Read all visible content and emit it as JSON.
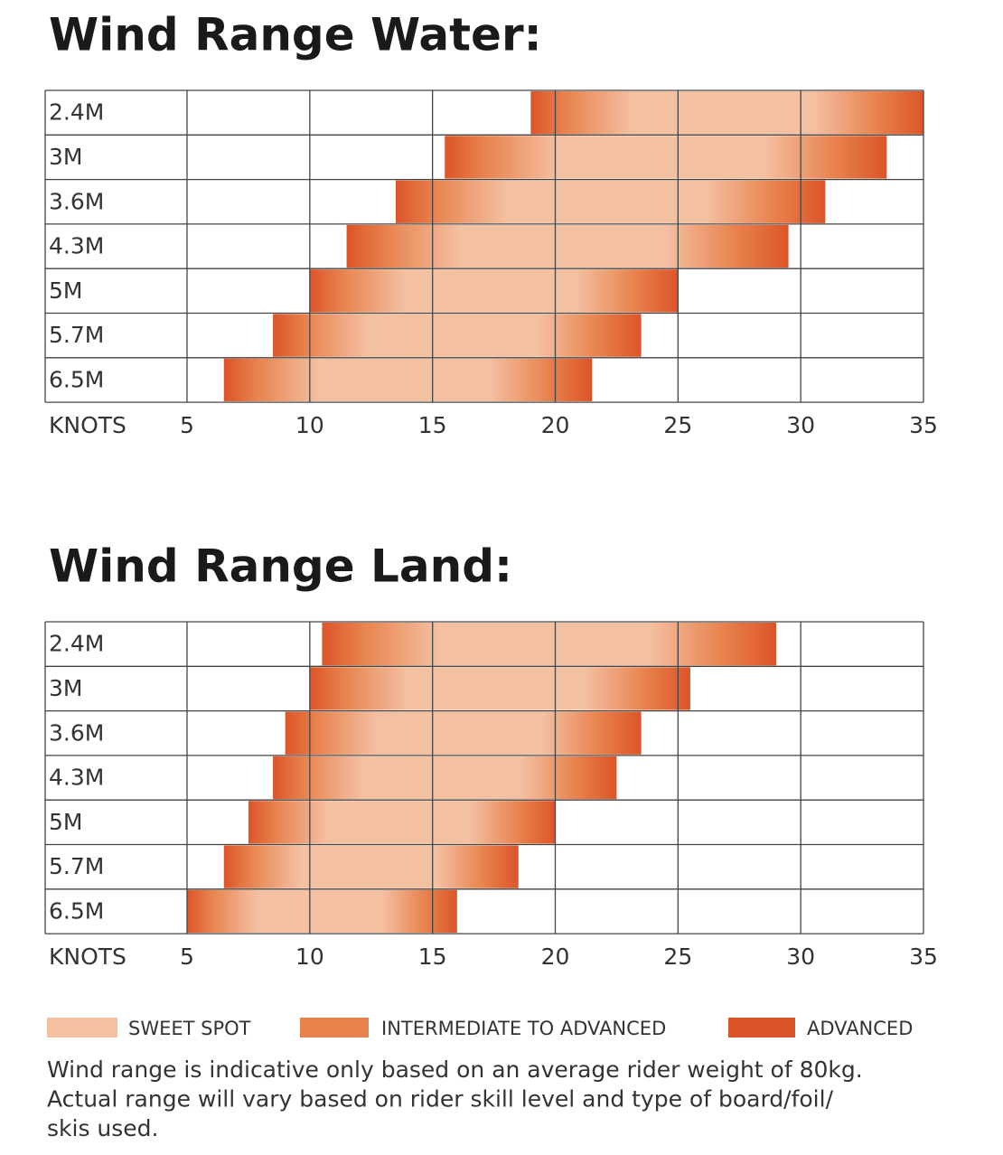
{
  "chart_data": [
    {
      "type": "range",
      "title": "Wind Range Water:",
      "xlabel": "KNOTS",
      "categories": [
        "2.4M",
        "3M",
        "3.6M",
        "4.3M",
        "5M",
        "5.7M",
        "6.5M"
      ],
      "low": [
        19,
        15.5,
        13.5,
        11.5,
        10,
        8.5,
        6.5
      ],
      "high": [
        35,
        33.5,
        31,
        29.5,
        25,
        23.5,
        21.5
      ],
      "xlim": [
        5,
        35
      ],
      "xticks": [
        5,
        10,
        15,
        20,
        25,
        30,
        35
      ],
      "grid": true
    },
    {
      "type": "range",
      "title": "Wind Range Land:",
      "xlabel": "KNOTS",
      "categories": [
        "2.4M",
        "3M",
        "3.6M",
        "4.3M",
        "5M",
        "5.7M",
        "6.5M"
      ],
      "low": [
        10.5,
        10,
        9,
        8.5,
        7.5,
        6.5,
        5
      ],
      "high": [
        29,
        25.5,
        23.5,
        22.5,
        20,
        18.5,
        16
      ],
      "xlim": [
        5,
        35
      ],
      "xticks": [
        5,
        10,
        15,
        20,
        25,
        30,
        35
      ],
      "grid": true
    }
  ],
  "legend": [
    {
      "name": "SWEET SPOT",
      "color": "#f4c0a2"
    },
    {
      "name": "INTERMEDIATE TO ADVANCED",
      "color": "#e8834e"
    },
    {
      "name": "ADVANCED",
      "color": "#dc5529"
    }
  ],
  "note": [
    "Wind range is indicative only based on an average rider weight of 80kg.",
    "Actual range will vary based on rider skill level and type of board/foil/",
    "skis used."
  ]
}
